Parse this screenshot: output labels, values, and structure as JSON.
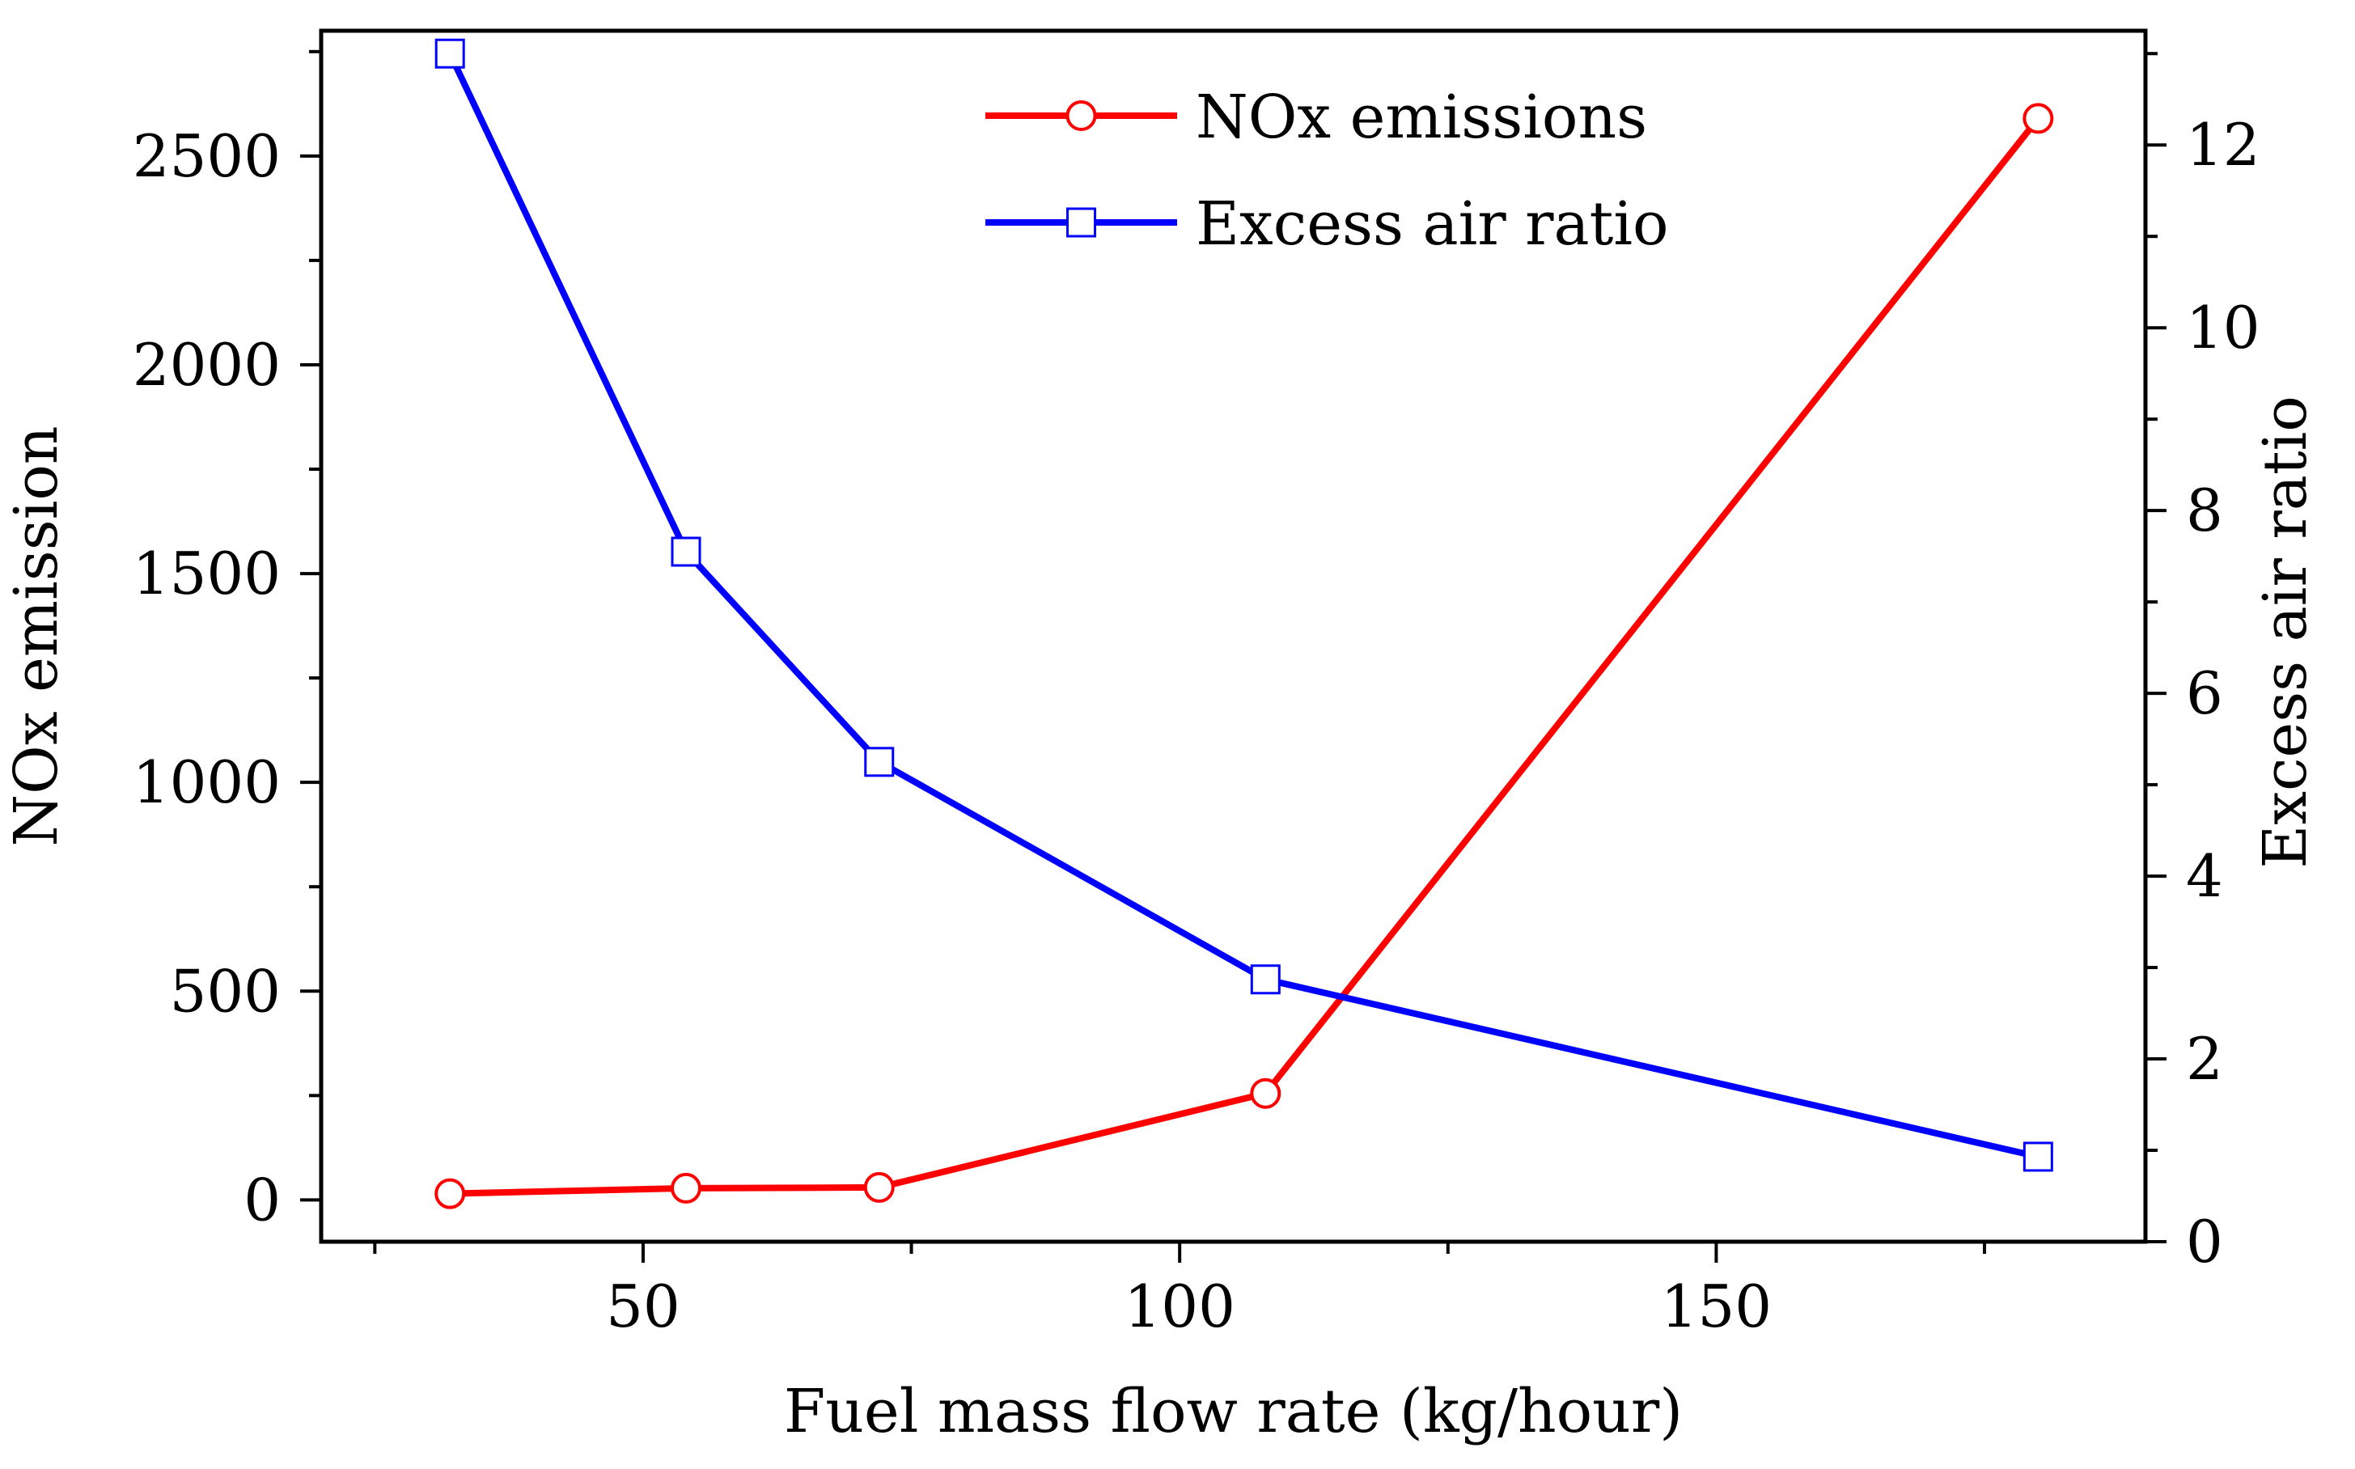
{
  "chart_data": {
    "type": "line",
    "title": "",
    "xlabel": "Fuel mass flow rate (kg/hour)",
    "ylabel_left": "NOx emission",
    "ylabel_right": "Excess air ratio",
    "xlim": [
      20,
      190
    ],
    "ylim_left": [
      -100,
      2800
    ],
    "ylim_right": [
      0,
      13.25
    ],
    "x_ticks": [
      50,
      100,
      150
    ],
    "x_tick_labels": [
      "50",
      "100",
      "150"
    ],
    "y_left_ticks": [
      0,
      500,
      1000,
      1500,
      2000,
      2500
    ],
    "y_left_tick_labels": [
      "0",
      "500",
      "1000",
      "1500",
      "2000",
      "2500"
    ],
    "y_right_ticks": [
      0,
      2,
      4,
      6,
      8,
      10,
      12
    ],
    "y_right_tick_labels": [
      "0",
      "2",
      "4",
      "6",
      "8",
      "10",
      "12"
    ],
    "grid": false,
    "legend_position": "top-center",
    "series": [
      {
        "name": "NOx emissions",
        "axis": "left",
        "color": "#ff0000",
        "marker": "circle",
        "x": [
          32,
          54,
          72,
          108,
          180
        ],
        "values": [
          15,
          28,
          30,
          255,
          2590
        ]
      },
      {
        "name": "Excess air ratio",
        "axis": "right",
        "color": "#0000ff",
        "marker": "square",
        "x": [
          32,
          54,
          72,
          108,
          180
        ],
        "values": [
          13.0,
          7.55,
          5.25,
          2.87,
          0.93
        ]
      }
    ]
  }
}
